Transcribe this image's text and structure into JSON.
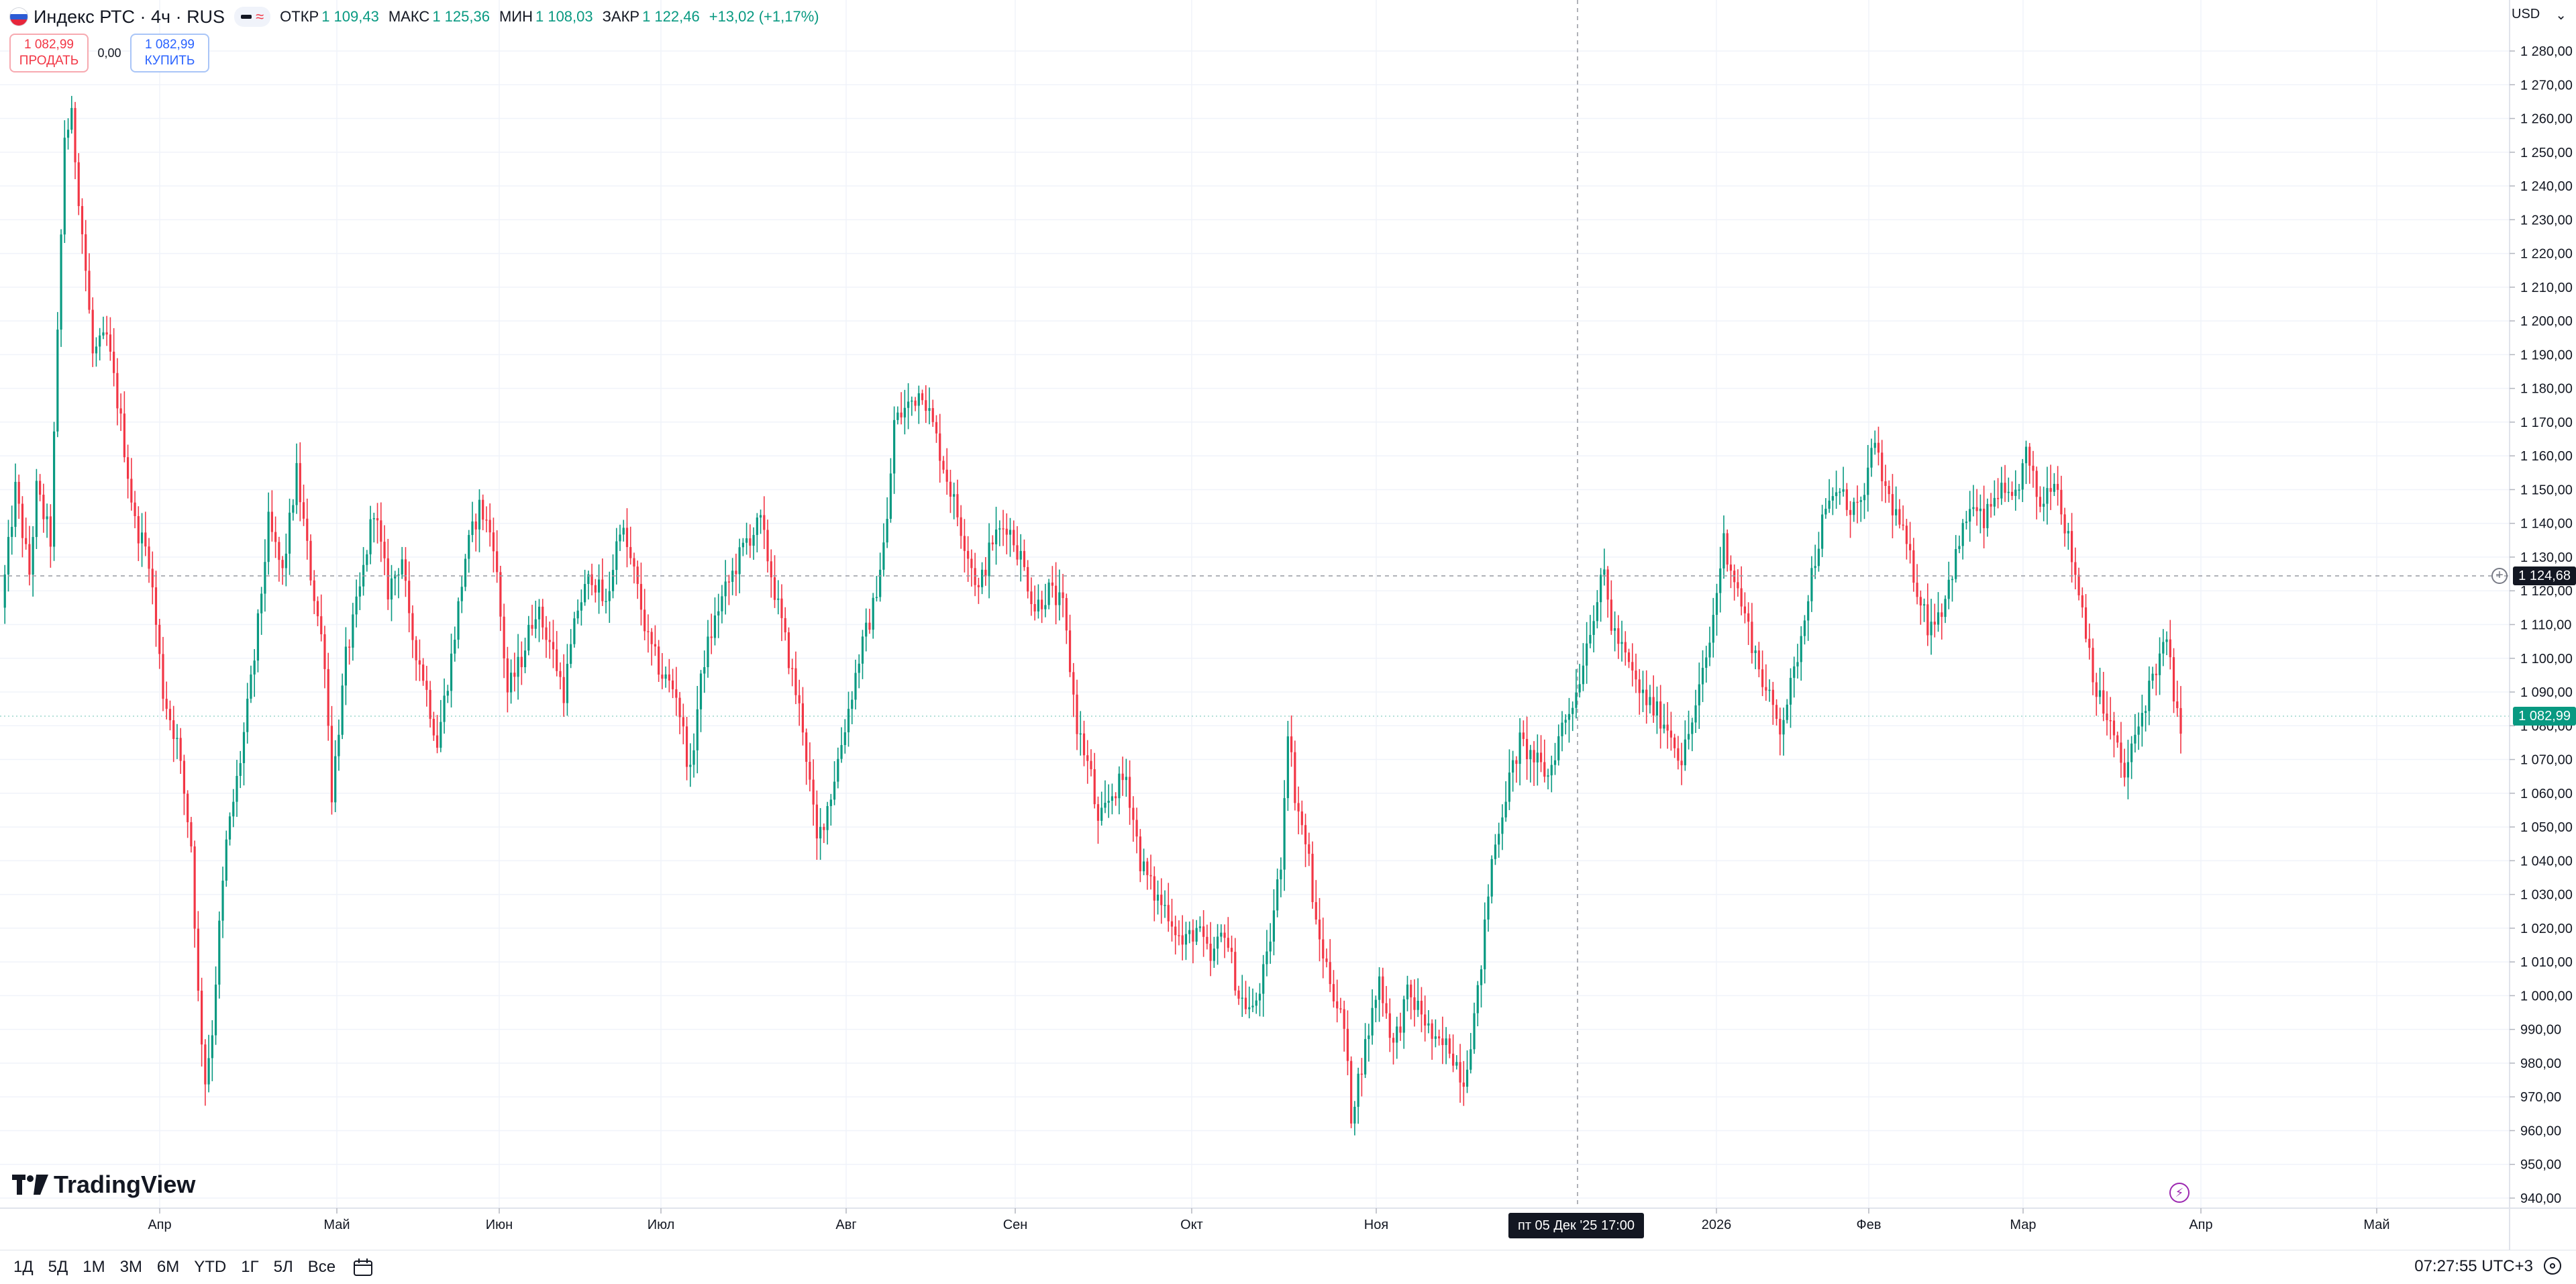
{
  "legend": {
    "symbol": "Индекс РТС · 4ч · RUS",
    "open_label": "ОТКР",
    "open": "1 109,43",
    "high_label": "МАКС",
    "high": "1 125,36",
    "low_label": "МИН",
    "low": "1 108,03",
    "close_label": "ЗАКР",
    "close": "1 122,46",
    "change": "+13,02 (+1,17%)"
  },
  "trade": {
    "sell_price": "1 082,99",
    "sell_label": "ПРОДАТЬ",
    "spread": "0,00",
    "buy_price": "1 082,99",
    "buy_label": "КУПИТЬ"
  },
  "currency": "USD",
  "crosshair_price": "1 124,68",
  "last_price": "1 082,99",
  "crosshair_time": "пт 05 Дек '25   17:00",
  "logo_text": "TradingView",
  "time_ranges": [
    "1Д",
    "5Д",
    "1М",
    "3М",
    "6М",
    "YTD",
    "1Г",
    "5Л",
    "Все"
  ],
  "clock": "07:27:55 UTC+3",
  "colors": {
    "up": "#089981",
    "down": "#f23645",
    "grid": "#f0f3fa",
    "axis_text": "#131722"
  },
  "chart_data": {
    "type": "candlestick",
    "timeframe": "4h",
    "y_ticks": [
      940,
      950,
      960,
      970,
      980,
      990,
      1000,
      1010,
      1020,
      1030,
      1040,
      1050,
      1060,
      1070,
      1080,
      1090,
      1100,
      1110,
      1120,
      1130,
      1140,
      1150,
      1160,
      1170,
      1180,
      1190,
      1200,
      1210,
      1220,
      1230,
      1240,
      1250,
      1260,
      1270,
      1280
    ],
    "y_tick_labels": [
      "940,00",
      "950,00",
      "960,00",
      "970,00",
      "980,00",
      "990,00",
      "1 000,00",
      "1 010,00",
      "1 020,00",
      "1 030,00",
      "1 040,00",
      "1 050,00",
      "1 060,00",
      "1 070,00",
      "1 080,00",
      "1 090,00",
      "1 100,00",
      "1 110,00",
      "1 120,00",
      "1 130,00",
      "1 140,00",
      "1 150,00",
      "1 160,00",
      "1 170,00",
      "1 180,00",
      "1 190,00",
      "1 200,00",
      "1 210,00",
      "1 220,00",
      "1 230,00",
      "1 240,00",
      "1 250,00",
      "1 260,00",
      "1 270,00",
      "1 280,00"
    ],
    "x_labels": [
      "Апр",
      "Май",
      "Июн",
      "Июл",
      "Авг",
      "Сен",
      "Окт",
      "Ноя",
      "2026",
      "Фев",
      "Мар",
      "Апр",
      "Май"
    ],
    "ylim": [
      935,
      1290
    ],
    "grid": true,
    "path": [
      [
        0,
        1115
      ],
      [
        2,
        1150
      ],
      [
        4,
        1125
      ],
      [
        5,
        1150
      ],
      [
        7,
        1135
      ],
      [
        9,
        1255
      ],
      [
        10,
        1260
      ],
      [
        12,
        1215
      ],
      [
        13,
        1190
      ],
      [
        15,
        1195
      ],
      [
        17,
        1170
      ],
      [
        19,
        1140
      ],
      [
        21,
        1130
      ],
      [
        23,
        1090
      ],
      [
        25,
        1075
      ],
      [
        27,
        1045
      ],
      [
        28,
        1000
      ],
      [
        29,
        975
      ],
      [
        30,
        990
      ],
      [
        31,
        1020
      ],
      [
        32,
        1045
      ],
      [
        34,
        1070
      ],
      [
        36,
        1100
      ],
      [
        38,
        1140
      ],
      [
        40,
        1125
      ],
      [
        42,
        1155
      ],
      [
        44,
        1125
      ],
      [
        46,
        1100
      ],
      [
        47,
        1060
      ],
      [
        49,
        1100
      ],
      [
        51,
        1120
      ],
      [
        53,
        1145
      ],
      [
        55,
        1120
      ],
      [
        57,
        1130
      ],
      [
        58,
        1110
      ],
      [
        60,
        1095
      ],
      [
        62,
        1075
      ],
      [
        64,
        1100
      ],
      [
        66,
        1130
      ],
      [
        68,
        1145
      ],
      [
        70,
        1135
      ],
      [
        72,
        1090
      ],
      [
        74,
        1100
      ],
      [
        76,
        1115
      ],
      [
        78,
        1105
      ],
      [
        80,
        1090
      ],
      [
        82,
        1115
      ],
      [
        84,
        1125
      ],
      [
        86,
        1115
      ],
      [
        88,
        1140
      ],
      [
        90,
        1125
      ],
      [
        92,
        1105
      ],
      [
        94,
        1095
      ],
      [
        96,
        1090
      ],
      [
        98,
        1065
      ],
      [
        99,
        1085
      ],
      [
        100,
        1100
      ],
      [
        102,
        1115
      ],
      [
        104,
        1125
      ],
      [
        106,
        1135
      ],
      [
        108,
        1140
      ],
      [
        110,
        1120
      ],
      [
        112,
        1100
      ],
      [
        114,
        1080
      ],
      [
        116,
        1045
      ],
      [
        118,
        1060
      ],
      [
        120,
        1080
      ],
      [
        122,
        1100
      ],
      [
        124,
        1115
      ],
      [
        126,
        1140
      ],
      [
        127,
        1170
      ],
      [
        129,
        1175
      ],
      [
        131,
        1180
      ],
      [
        133,
        1165
      ],
      [
        135,
        1150
      ],
      [
        137,
        1135
      ],
      [
        139,
        1120
      ],
      [
        141,
        1135
      ],
      [
        143,
        1140
      ],
      [
        145,
        1130
      ],
      [
        147,
        1115
      ],
      [
        149,
        1120
      ],
      [
        151,
        1115
      ],
      [
        153,
        1080
      ],
      [
        155,
        1065
      ],
      [
        156,
        1050
      ],
      [
        158,
        1060
      ],
      [
        160,
        1065
      ],
      [
        162,
        1040
      ],
      [
        164,
        1030
      ],
      [
        166,
        1025
      ],
      [
        168,
        1015
      ],
      [
        170,
        1020
      ],
      [
        172,
        1010
      ],
      [
        174,
        1020
      ],
      [
        176,
        1000
      ],
      [
        178,
        995
      ],
      [
        180,
        1010
      ],
      [
        182,
        1040
      ],
      [
        183,
        1080
      ],
      [
        184,
        1060
      ],
      [
        186,
        1040
      ],
      [
        187,
        1020
      ],
      [
        189,
        1005
      ],
      [
        191,
        990
      ],
      [
        192,
        965
      ],
      [
        194,
        985
      ],
      [
        196,
        1005
      ],
      [
        198,
        985
      ],
      [
        200,
        1000
      ],
      [
        202,
        995
      ],
      [
        204,
        985
      ],
      [
        206,
        985
      ],
      [
        208,
        975
      ],
      [
        210,
        1000
      ],
      [
        212,
        1040
      ],
      [
        214,
        1060
      ],
      [
        216,
        1075
      ],
      [
        218,
        1070
      ],
      [
        220,
        1065
      ],
      [
        222,
        1080
      ],
      [
        224,
        1090
      ],
      [
        226,
        1110
      ],
      [
        228,
        1125
      ],
      [
        229,
        1110
      ],
      [
        231,
        1100
      ],
      [
        233,
        1090
      ],
      [
        235,
        1085
      ],
      [
        237,
        1080
      ],
      [
        239,
        1070
      ],
      [
        241,
        1085
      ],
      [
        243,
        1105
      ],
      [
        245,
        1135
      ],
      [
        247,
        1120
      ],
      [
        249,
        1105
      ],
      [
        251,
        1090
      ],
      [
        253,
        1080
      ],
      [
        255,
        1095
      ],
      [
        257,
        1120
      ],
      [
        259,
        1140
      ],
      [
        261,
        1150
      ],
      [
        263,
        1145
      ],
      [
        265,
        1145
      ],
      [
        266,
        1165
      ],
      [
        268,
        1150
      ],
      [
        270,
        1140
      ],
      [
        272,
        1125
      ],
      [
        274,
        1110
      ],
      [
        276,
        1115
      ],
      [
        278,
        1130
      ],
      [
        280,
        1145
      ],
      [
        282,
        1140
      ],
      [
        284,
        1150
      ],
      [
        286,
        1145
      ],
      [
        288,
        1160
      ],
      [
        290,
        1145
      ],
      [
        292,
        1155
      ],
      [
        294,
        1135
      ],
      [
        296,
        1115
      ],
      [
        298,
        1090
      ],
      [
        300,
        1080
      ],
      [
        302,
        1065
      ],
      [
        304,
        1080
      ],
      [
        306,
        1095
      ],
      [
        308,
        1105
      ],
      [
        310,
        1075
      ]
    ]
  }
}
